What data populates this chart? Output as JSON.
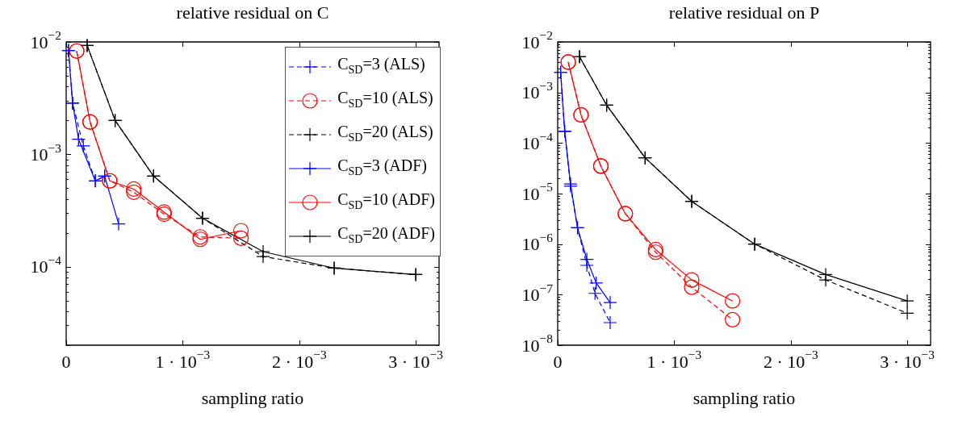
{
  "chart_data": [
    {
      "type": "line",
      "title": "relative residual on C",
      "xlabel": "sampling ratio",
      "log": "y",
      "legend": "top right",
      "xlim": [
        0,
        0.0032
      ],
      "xticks": [
        0,
        {
          "value": 0.001,
          "label": "1 · 10$^{−3}$"
        },
        {
          "value": 0.002,
          "label": "2 · 10$^{−3}$"
        },
        {
          "value": 0.003,
          "label": "3 · 10$^{−3}$"
        }
      ],
      "ylim": [
        2e-05,
        0.01
      ],
      "yticks": [
        {
          "value": 2e-05,
          "label": null
        },
        {
          "value": 3e-05,
          "label": null
        },
        {
          "value": 4e-05,
          "label": null
        },
        {
          "value": 5e-05,
          "label": null
        },
        {
          "value": 6e-05,
          "label": null
        },
        {
          "value": 7e-05,
          "label": null
        },
        {
          "value": 8e-05,
          "label": null
        },
        {
          "value": 9e-05,
          "label": null
        },
        {
          "value": 0.0001,
          "label": "10$^{−4}$"
        },
        {
          "value": 0.0002,
          "label": null
        },
        {
          "value": 0.0003,
          "label": null
        },
        {
          "value": 0.0004,
          "label": null
        },
        {
          "value": 0.0005,
          "label": null
        },
        {
          "value": 0.0006,
          "label": null
        },
        {
          "value": 0.0007,
          "label": null
        },
        {
          "value": 0.0008,
          "label": null
        },
        {
          "value": 0.0009,
          "label": null
        },
        {
          "value": 0.001,
          "label": "10$^{−3}$"
        },
        {
          "value": 0.002,
          "label": null
        },
        {
          "value": 0.003,
          "label": null
        },
        {
          "value": 0.004,
          "label": null
        },
        {
          "value": 0.005,
          "label": null
        },
        {
          "value": 0.006,
          "label": null
        },
        {
          "value": 0.007,
          "label": null
        },
        {
          "value": 0.008,
          "label": null
        },
        {
          "value": 0.009,
          "label": null
        },
        {
          "value": 0.01,
          "label": "10$^{−2}$"
        }
      ],
      "series": [
        {
          "name": "C$_{SD}$=3 (ALS)",
          "color": "#0000ff",
          "marker": "cross",
          "line_style": "dashed",
          "x": [
            2e-05,
            5.5e-05,
            0.000147,
            0.00025,
            0.00033
          ],
          "values": [
            0.0084,
            0.00285,
            0.00119,
            0.00058,
            0.00064
          ]
        },
        {
          "name": "C$_{SD}$=10 (ALS)",
          "color": "#ff0000",
          "marker": "circle",
          "line_style": "dashed",
          "x": [
            9e-05,
            0.000205,
            0.000374,
            0.00058,
            0.00084,
            0.00115,
            0.0015
          ],
          "values": [
            0.0083,
            0.00194,
            0.00058,
            0.00046,
            0.000293,
            0.000184,
            0.000179
          ]
        },
        {
          "name": "C$_{SD}$=20 (ALS)",
          "color": "#000000",
          "marker": "cross",
          "line_style": "dashed",
          "x": [
            0.00018,
            0.00042,
            0.00075,
            0.00117,
            0.00169,
            0.0023,
            0.003
          ],
          "values": [
            0.0093,
            0.002,
            0.00064,
            0.00027,
            0.000123,
            9.7e-05,
            8.5e-05
          ]
        },
        {
          "name": "C$_{SD}$=3 (ADF)",
          "color": "#0000ff",
          "marker": "cross",
          "line_style": "solid",
          "x": [
            2e-05,
            5.5e-05,
            0.000106,
            0.00025,
            0.00033,
            0.00045
          ],
          "values": [
            0.0084,
            0.00285,
            0.00136,
            0.00058,
            0.00064,
            0.00024
          ]
        },
        {
          "name": "C$_{SD}$=10 (ADF)",
          "color": "#ff0000",
          "marker": "circle",
          "line_style": "solid",
          "x": [
            9e-05,
            0.000205,
            0.000374,
            0.00058,
            0.00084,
            0.00115,
            0.0015
          ],
          "values": [
            0.0083,
            0.00194,
            0.00058,
            0.00049,
            0.000306,
            0.000175,
            0.000209
          ]
        },
        {
          "name": "C$_{SD}$=20 (ADF)",
          "color": "#000000",
          "marker": "cross",
          "line_style": "solid",
          "x": [
            0.00018,
            0.00042,
            0.00075,
            0.00117,
            0.00169,
            0.0023,
            0.003
          ],
          "values": [
            0.0093,
            0.002,
            0.00064,
            0.00027,
            0.000136,
            9.7e-05,
            8.5e-05
          ]
        }
      ]
    },
    {
      "type": "line",
      "title": "relative residual on P",
      "xlabel": "sampling ratio",
      "log": "y",
      "xlim": [
        0,
        0.0032
      ],
      "xticks": [
        0,
        {
          "value": 0.001,
          "label": "1 · 10$^{−3}$"
        },
        {
          "value": 0.002,
          "label": "2 · 10$^{−3}$"
        },
        {
          "value": 0.003,
          "label": "3 · 10$^{−3}$"
        }
      ],
      "ylim": [
        1e-08,
        0.01
      ],
      "yticks": [
        {
          "value": 1e-08,
          "label": "10$^{−8}$"
        },
        {
          "value": 2e-08,
          "label": null
        },
        {
          "value": 3e-08,
          "label": null
        },
        {
          "value": 4e-08,
          "label": null
        },
        {
          "value": 5e-08,
          "label": null
        },
        {
          "value": 6e-08,
          "label": null
        },
        {
          "value": 7e-08,
          "label": null
        },
        {
          "value": 8e-08,
          "label": null
        },
        {
          "value": 9e-08,
          "label": null
        },
        {
          "value": 1e-07,
          "label": "10$^{−7}$"
        },
        {
          "value": 2e-07,
          "label": null
        },
        {
          "value": 3e-07,
          "label": null
        },
        {
          "value": 4e-07,
          "label": null
        },
        {
          "value": 5e-07,
          "label": null
        },
        {
          "value": 6e-07,
          "label": null
        },
        {
          "value": 7e-07,
          "label": null
        },
        {
          "value": 8e-07,
          "label": null
        },
        {
          "value": 9e-07,
          "label": null
        },
        {
          "value": 1e-06,
          "label": "10$^{−6}$"
        },
        {
          "value": 2e-06,
          "label": null
        },
        {
          "value": 3e-06,
          "label": null
        },
        {
          "value": 4e-06,
          "label": null
        },
        {
          "value": 5e-06,
          "label": null
        },
        {
          "value": 6e-06,
          "label": null
        },
        {
          "value": 7e-06,
          "label": null
        },
        {
          "value": 8e-06,
          "label": null
        },
        {
          "value": 9e-06,
          "label": null
        },
        {
          "value": 1e-05,
          "label": "10$^{−5}$"
        },
        {
          "value": 2e-05,
          "label": null
        },
        {
          "value": 3e-05,
          "label": null
        },
        {
          "value": 4e-05,
          "label": null
        },
        {
          "value": 5e-05,
          "label": null
        },
        {
          "value": 6e-05,
          "label": null
        },
        {
          "value": 7e-05,
          "label": null
        },
        {
          "value": 8e-05,
          "label": null
        },
        {
          "value": 9e-05,
          "label": null
        },
        {
          "value": 0.0001,
          "label": "10$^{−4}$"
        },
        {
          "value": 0.0002,
          "label": null
        },
        {
          "value": 0.0003,
          "label": null
        },
        {
          "value": 0.0004,
          "label": null
        },
        {
          "value": 0.0005,
          "label": null
        },
        {
          "value": 0.0006,
          "label": null
        },
        {
          "value": 0.0007,
          "label": null
        },
        {
          "value": 0.0008,
          "label": null
        },
        {
          "value": 0.0009,
          "label": null
        },
        {
          "value": 0.001,
          "label": "10$^{−3}$"
        },
        {
          "value": 0.002,
          "label": null
        },
        {
          "value": 0.003,
          "label": null
        },
        {
          "value": 0.004,
          "label": null
        },
        {
          "value": 0.005,
          "label": null
        },
        {
          "value": 0.006,
          "label": null
        },
        {
          "value": 0.007,
          "label": null
        },
        {
          "value": 0.008,
          "label": null
        },
        {
          "value": 0.009,
          "label": null
        },
        {
          "value": 0.01,
          "label": "10$^{−2}$"
        }
      ],
      "series": [
        {
          "color": "#0000ff",
          "marker": "cross",
          "line_style": "dashed",
          "x": [
            2.5e-05,
            6e-05,
            0.00011,
            0.00017,
            0.00025,
            0.00032,
            0.00045
          ],
          "values": [
            0.0025,
            0.00017,
            1.4e-05,
            2.1e-06,
            3.8e-07,
            1.06e-07,
            2.8e-08
          ]
        },
        {
          "color": "#ff0000",
          "marker": "circle",
          "line_style": "dashed",
          "x": [
            9e-05,
            0.0002,
            0.00037,
            0.00058,
            0.00084,
            0.00115,
            0.0015
          ],
          "values": [
            0.004,
            0.00036,
            3.5e-05,
            4e-06,
            6.9e-07,
            1.4e-07,
            3.2e-08
          ]
        },
        {
          "color": "#000000",
          "marker": "cross",
          "line_style": "dashed",
          "x": [
            0.000187,
            0.00042,
            0.00075,
            0.00115,
            0.00169,
            0.0023,
            0.003
          ],
          "values": [
            0.0051,
            0.00056,
            5.1e-05,
            7e-06,
            1e-06,
            1.95e-07,
            4.3e-08
          ]
        },
        {
          "color": "#0000ff",
          "marker": "cross",
          "line_style": "solid",
          "x": [
            2.5e-05,
            6e-05,
            0.00011,
            0.00017,
            0.00025,
            0.00033,
            0.00045
          ],
          "values": [
            0.0025,
            0.00017,
            1.55e-05,
            2.1e-06,
            5e-07,
            1.7e-07,
            7e-08
          ]
        },
        {
          "color": "#ff0000",
          "marker": "circle",
          "line_style": "solid",
          "x": [
            9e-05,
            0.0002,
            0.00037,
            0.00058,
            0.00084,
            0.00115,
            0.0015
          ],
          "values": [
            0.004,
            0.00036,
            3.5e-05,
            4e-06,
            7.8e-07,
            1.95e-07,
            7.5e-08
          ]
        },
        {
          "color": "#000000",
          "marker": "cross",
          "line_style": "solid",
          "x": [
            0.000187,
            0.00042,
            0.00075,
            0.00115,
            0.00169,
            0.0023,
            0.003
          ],
          "values": [
            0.0051,
            0.00056,
            5.1e-05,
            7e-06,
            1e-06,
            2.5e-07,
            7.5e-08
          ]
        }
      ]
    }
  ]
}
